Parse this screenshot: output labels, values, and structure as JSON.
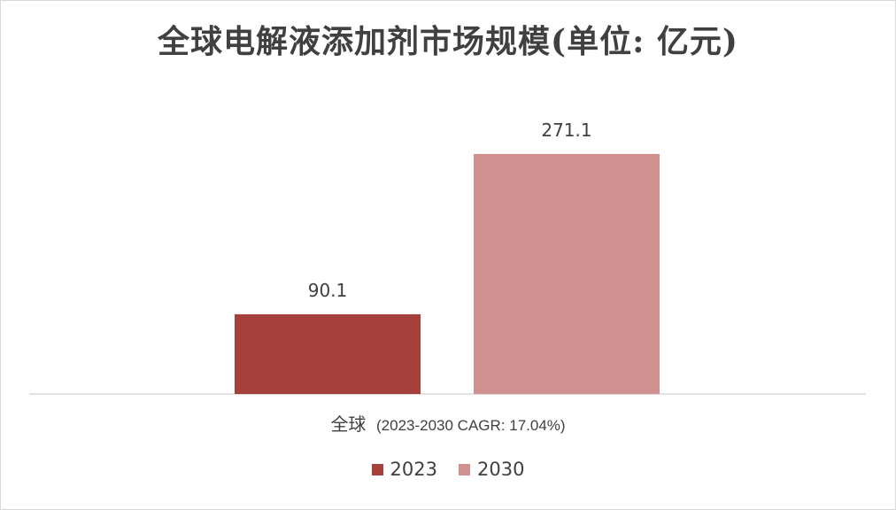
{
  "chart_data": {
    "type": "bar",
    "title": "全球电解液添加剂市场规模(单位: 亿元)",
    "categories": [
      "全球 (2023-2030 CAGR: 17.04%)"
    ],
    "category_main": "全球",
    "category_note": "(2023-2030 CAGR: 17.04%)",
    "series": [
      {
        "name": "2023",
        "values": [
          90.1
        ],
        "label": "90.1",
        "color": "#a5403a"
      },
      {
        "name": "2030",
        "values": [
          271.1
        ],
        "label": "271.1",
        "color": "#d09090"
      }
    ],
    "xlabel": "",
    "ylabel": "",
    "ylim": [
      0,
      300
    ],
    "grid": false,
    "legend_position": "bottom"
  }
}
